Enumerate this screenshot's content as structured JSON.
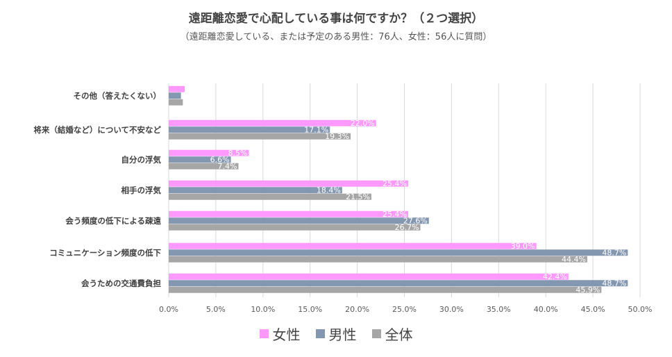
{
  "chart_data": {
    "type": "bar",
    "orientation": "horizontal",
    "title": "遠距離恋愛で心配している事は何ですか？（２つ選択）",
    "subtitle": "（遠距離恋愛している、または予定のある男性：76人、女性：56人に質問）",
    "categories": [
      "その他（答えたくない）",
      "将来（結婚など）について不安など",
      "自分の浮気",
      "相手の浮気",
      "会う頻度の低下による疎遠",
      "コミュニケーション頻度の低下",
      "会うための交通費負担"
    ],
    "series": [
      {
        "name": "女性",
        "color": "#ff99ff",
        "values": [
          1.7,
          22.0,
          8.5,
          25.4,
          25.4,
          39.0,
          42.4
        ],
        "labels": [
          "",
          "22.0%",
          "8.5%",
          "25.4%",
          "25.4%",
          "39.0%",
          "42.4%"
        ]
      },
      {
        "name": "男性",
        "color": "#8497b0",
        "values": [
          1.3,
          17.1,
          6.6,
          18.4,
          27.6,
          48.7,
          48.7
        ],
        "labels": [
          "",
          "17.1%",
          "6.6%",
          "18.4%",
          "27.6%",
          "48.7%",
          "48.7%"
        ]
      },
      {
        "name": "全体",
        "color": "#a6a6a6",
        "values": [
          1.5,
          19.3,
          7.4,
          21.5,
          26.7,
          44.4,
          45.9
        ],
        "labels": [
          "",
          "19.3%",
          "7.4%",
          "21.5%",
          "26.7%",
          "44.4%",
          "45.9%"
        ]
      }
    ],
    "xlim": [
      0,
      50
    ],
    "xticks": [
      "0.0%",
      "5.0%",
      "10.0%",
      "15.0%",
      "20.0%",
      "25.0%",
      "30.0%",
      "35.0%",
      "40.0%",
      "45.0%",
      "50.0%"
    ],
    "grid": true,
    "legend": "bottom-center"
  }
}
